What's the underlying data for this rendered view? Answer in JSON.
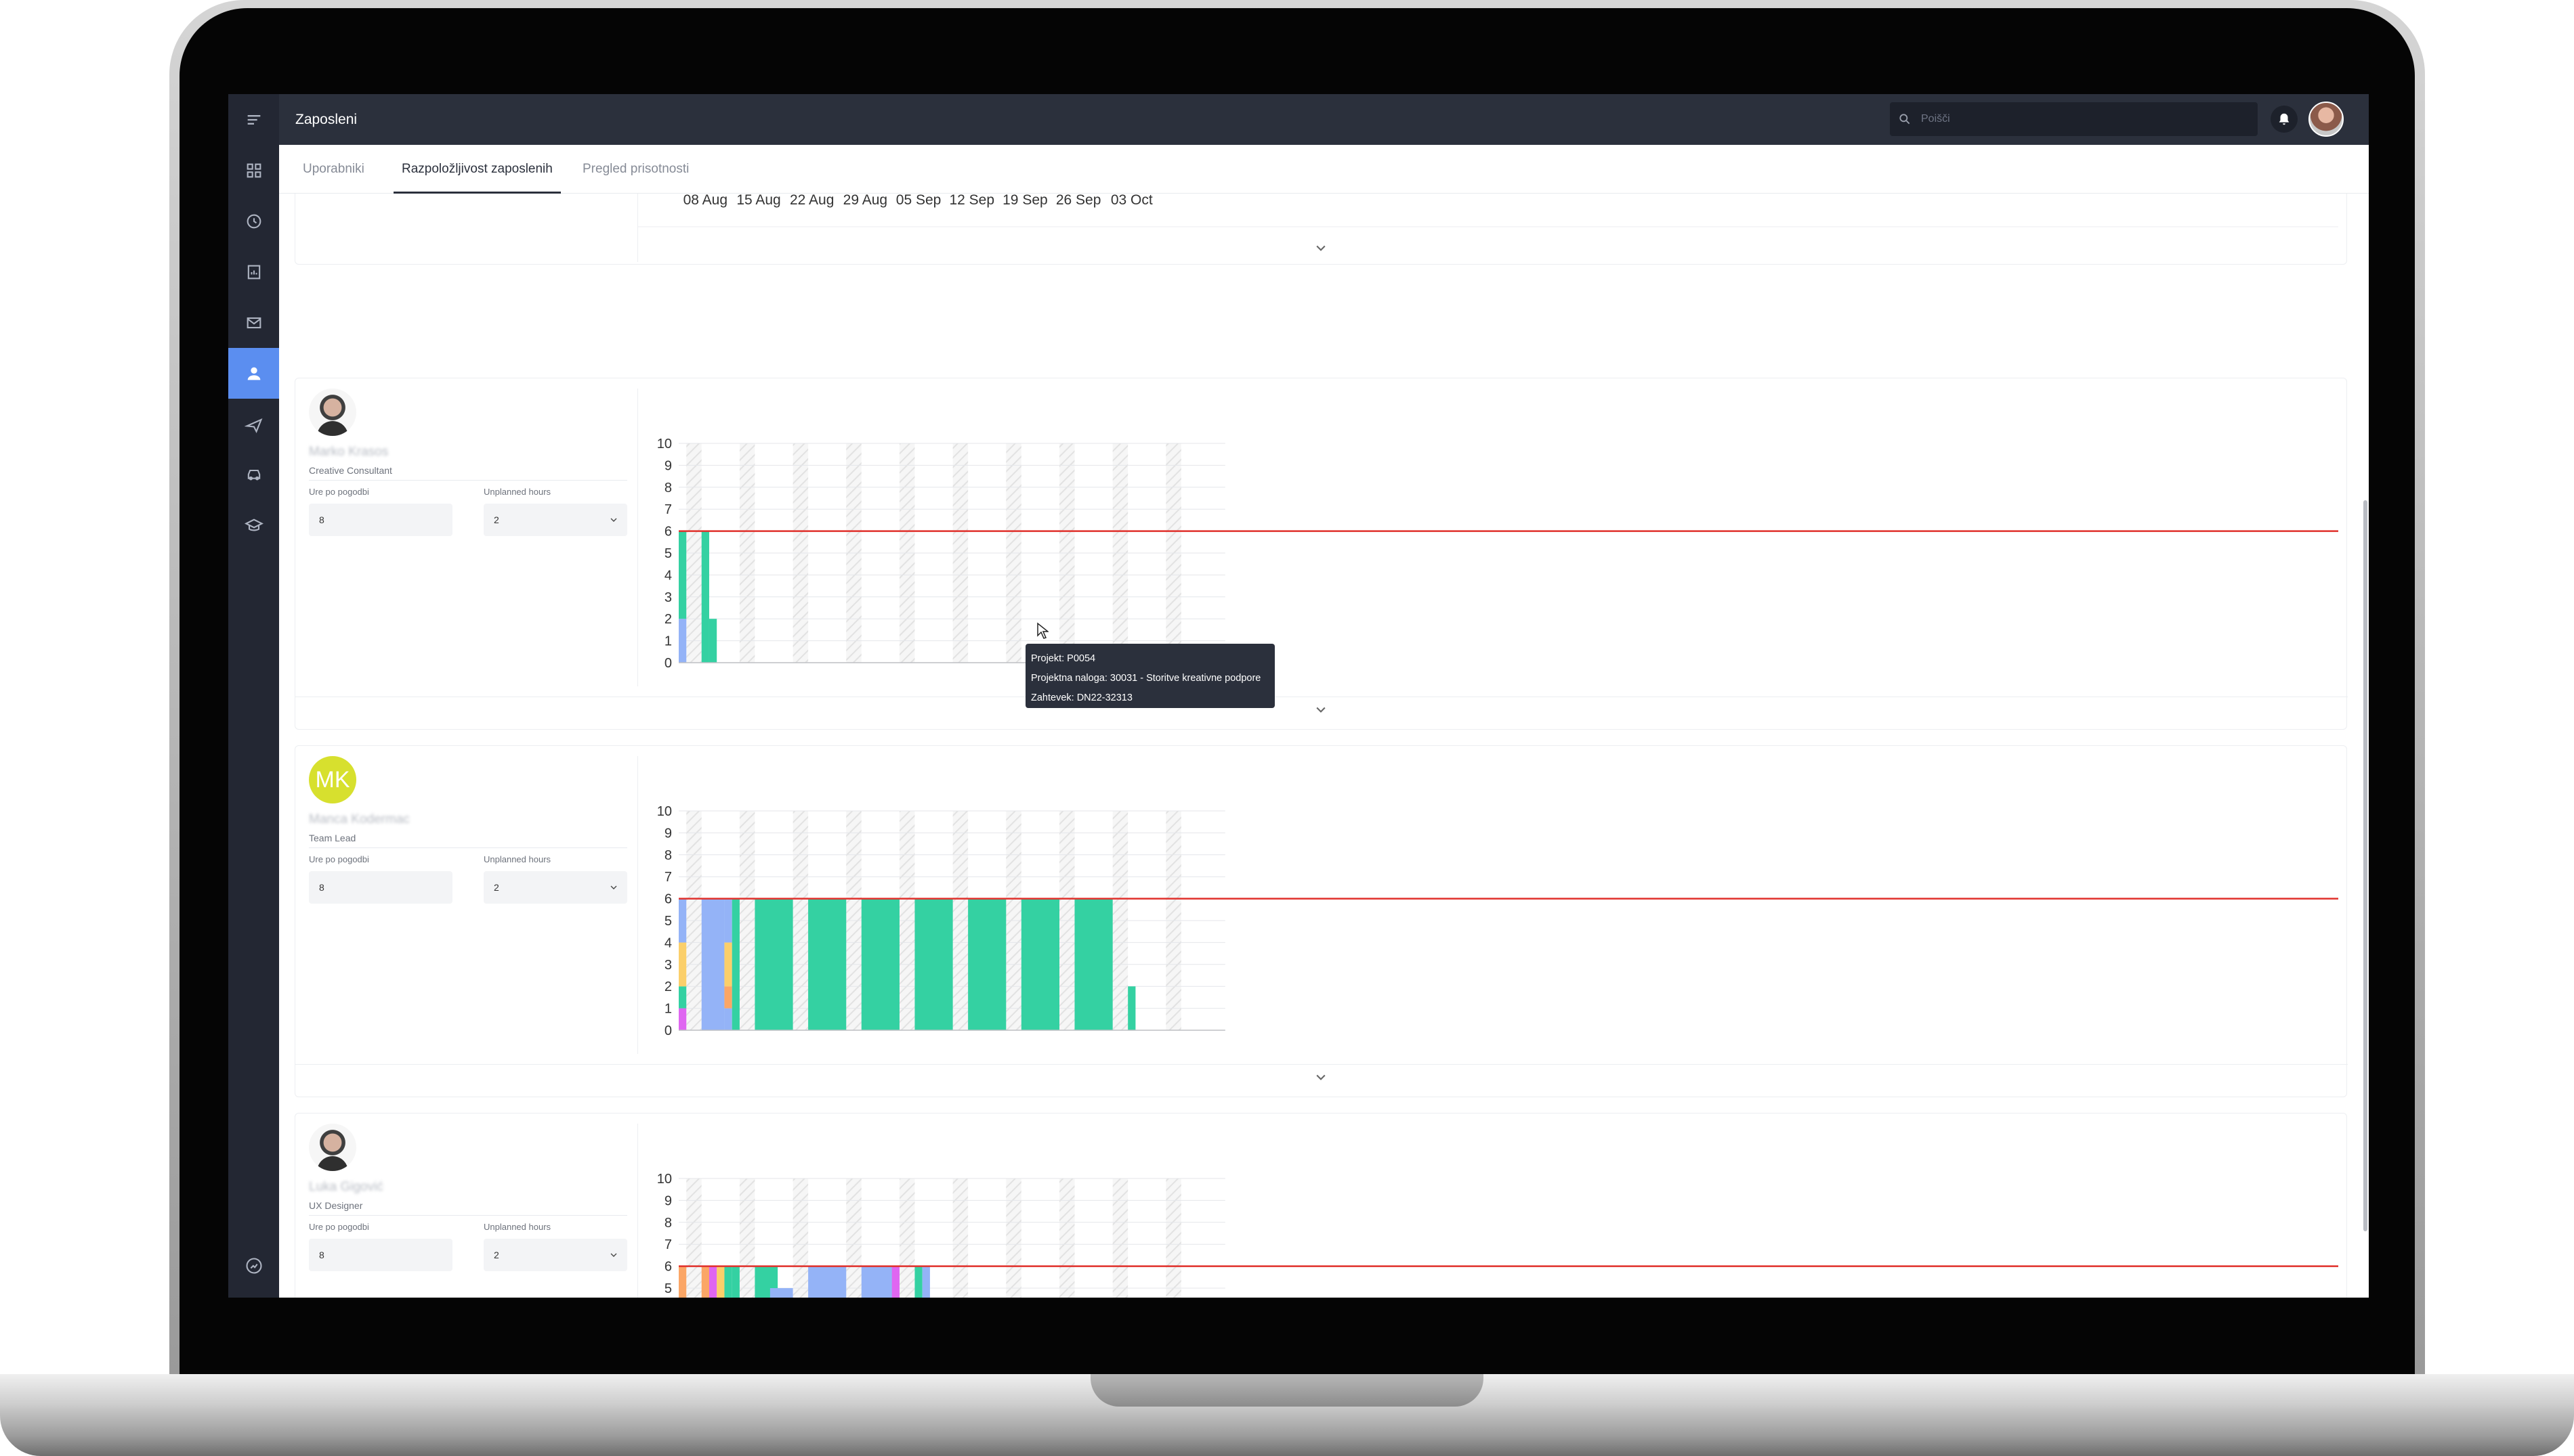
{
  "header": {
    "title": "Zaposleni",
    "search_placeholder": "Poišči"
  },
  "tabs": [
    {
      "label": "Uporabniki",
      "active": false
    },
    {
      "label": "Razpoložljivost zaposlenih",
      "active": true
    },
    {
      "label": "Pregled prisotnosti",
      "active": false
    }
  ],
  "sidebar": {
    "items": [
      {
        "icon": "grid-icon",
        "active": false
      },
      {
        "icon": "clock-icon",
        "active": false
      },
      {
        "icon": "report-icon",
        "active": false
      },
      {
        "icon": "mail-icon",
        "active": false
      },
      {
        "icon": "user-icon",
        "active": true
      },
      {
        "icon": "plane-icon",
        "active": false
      },
      {
        "icon": "car-icon",
        "active": false
      },
      {
        "icon": "graduation-icon",
        "active": false
      }
    ],
    "bottom_icon": "help-icon"
  },
  "field_labels": {
    "contract_hours": "Ure po pogodbi",
    "unplanned_hours": "Unplanned hours"
  },
  "employees": [
    {
      "name": "Marko Krasos",
      "role": "Creative Consultant",
      "contract_hours": "8",
      "unplanned_hours": "2",
      "avatar": "photo"
    },
    {
      "name": "Manca Kodermac",
      "role": "Team Lead",
      "contract_hours": "8",
      "unplanned_hours": "2",
      "avatar": "initials",
      "initials": "MK"
    },
    {
      "name": "Luka Gigović",
      "role": "UX Designer",
      "contract_hours": "8",
      "unplanned_hours": "2",
      "avatar": "photo"
    }
  ],
  "tooltip": {
    "line1": "Projekt: P0054",
    "line2": "Projektna naloga: 30031 - Storitve kreativne podpore",
    "line3": "Zahtevek: DN22-32313"
  },
  "chart_data": {
    "type": "bar",
    "x_labels": [
      "08 Aug",
      "15 Aug",
      "22 Aug",
      "29 Aug",
      "05 Sep",
      "12 Sep",
      "19 Sep",
      "26 Sep",
      "03 Oct"
    ],
    "y_ticks": [
      0,
      1,
      2,
      3,
      4,
      5,
      6,
      7,
      8,
      9,
      10
    ],
    "ylim": [
      0,
      10
    ],
    "capacity_line": 6,
    "colors": {
      "green": "#34d1a2",
      "blue": "#94b3f7",
      "yellow": "#fbcf6a",
      "orange": "#fba666",
      "magenta": "#df66f1",
      "capacity": "#e0302b",
      "weekend": "#e2e2e2"
    },
    "charts": [
      {
        "employee": "Marko Krasos",
        "segments": [
          {
            "day": 0,
            "span": 1,
            "from": 0,
            "to": 2,
            "color": "blue"
          },
          {
            "day": 0,
            "span": 1,
            "from": 2,
            "to": 6,
            "color": "green"
          },
          {
            "day": 3,
            "span": 1,
            "from": 0,
            "to": 6,
            "color": "green"
          },
          {
            "day": 4,
            "span": 1,
            "from": 0,
            "to": 2,
            "color": "green"
          }
        ]
      },
      {
        "employee": "Manca Kodermac",
        "segments": [
          {
            "day": 0,
            "span": 1,
            "from": 0,
            "to": 1,
            "color": "magenta"
          },
          {
            "day": 0,
            "span": 1,
            "from": 1,
            "to": 2,
            "color": "green"
          },
          {
            "day": 0,
            "span": 1,
            "from": 2,
            "to": 4,
            "color": "yellow"
          },
          {
            "day": 0,
            "span": 1,
            "from": 4,
            "to": 6,
            "color": "blue"
          },
          {
            "day": 3,
            "span": 3,
            "from": 0,
            "to": 6,
            "color": "blue"
          },
          {
            "day": 6,
            "span": 1,
            "from": 0,
            "to": 1,
            "color": "blue"
          },
          {
            "day": 6,
            "span": 1,
            "from": 1,
            "to": 2,
            "color": "orange"
          },
          {
            "day": 6,
            "span": 1,
            "from": 2,
            "to": 4,
            "color": "yellow"
          },
          {
            "day": 6,
            "span": 1,
            "from": 4,
            "to": 6,
            "color": "blue"
          },
          {
            "day": 7,
            "span": 1,
            "from": 0,
            "to": 6,
            "color": "green"
          },
          {
            "day": 10,
            "span": 5,
            "from": 0,
            "to": 6,
            "color": "green"
          },
          {
            "day": 17,
            "span": 5,
            "from": 0,
            "to": 6,
            "color": "green"
          },
          {
            "day": 24,
            "span": 5,
            "from": 0,
            "to": 6,
            "color": "green"
          },
          {
            "day": 31,
            "span": 5,
            "from": 0,
            "to": 6,
            "color": "green"
          },
          {
            "day": 38,
            "span": 5,
            "from": 0,
            "to": 6,
            "color": "green"
          },
          {
            "day": 45,
            "span": 5,
            "from": 0,
            "to": 6,
            "color": "green"
          },
          {
            "day": 52,
            "span": 5,
            "from": 0,
            "to": 6,
            "color": "green"
          },
          {
            "day": 59,
            "span": 1,
            "from": 0,
            "to": 2,
            "color": "green"
          }
        ]
      },
      {
        "employee": "Luka Gigović",
        "segments": [
          {
            "day": 0,
            "span": 1,
            "from": 0,
            "to": 1.5,
            "color": "yellow"
          },
          {
            "day": 0,
            "span": 1,
            "from": 1.5,
            "to": 6,
            "color": "orange"
          },
          {
            "day": 3,
            "span": 2,
            "from": 0,
            "to": 6,
            "color": "orange"
          },
          {
            "day": 4,
            "span": 1,
            "from": 3.5,
            "to": 6,
            "color": "magenta"
          },
          {
            "day": 5,
            "span": 1,
            "from": 0,
            "to": 1.5,
            "color": "magenta"
          },
          {
            "day": 5,
            "span": 1,
            "from": 1.5,
            "to": 6,
            "color": "yellow"
          },
          {
            "day": 6,
            "span": 1,
            "from": 0,
            "to": 1.5,
            "color": "yellow"
          },
          {
            "day": 6,
            "span": 1,
            "from": 1.5,
            "to": 6,
            "color": "green"
          },
          {
            "day": 7,
            "span": 1,
            "from": 0,
            "to": 6,
            "color": "green"
          },
          {
            "day": 10,
            "span": 3,
            "from": 0,
            "to": 6,
            "color": "green"
          },
          {
            "day": 12,
            "span": 3,
            "from": 0,
            "to": 5,
            "color": "blue"
          },
          {
            "day": 17,
            "span": 5,
            "from": 0,
            "to": 6,
            "color": "blue"
          },
          {
            "day": 24,
            "span": 5,
            "from": 0,
            "to": 6,
            "color": "blue"
          },
          {
            "day": 28,
            "span": 1,
            "from": 4.5,
            "to": 6,
            "color": "magenta"
          },
          {
            "day": 31,
            "span": 1,
            "from": 0,
            "to": 1,
            "color": "orange"
          },
          {
            "day": 31,
            "span": 1,
            "from": 1,
            "to": 6,
            "color": "green"
          },
          {
            "day": 32,
            "span": 1,
            "from": 0,
            "to": 6,
            "color": "blue"
          }
        ]
      }
    ]
  }
}
